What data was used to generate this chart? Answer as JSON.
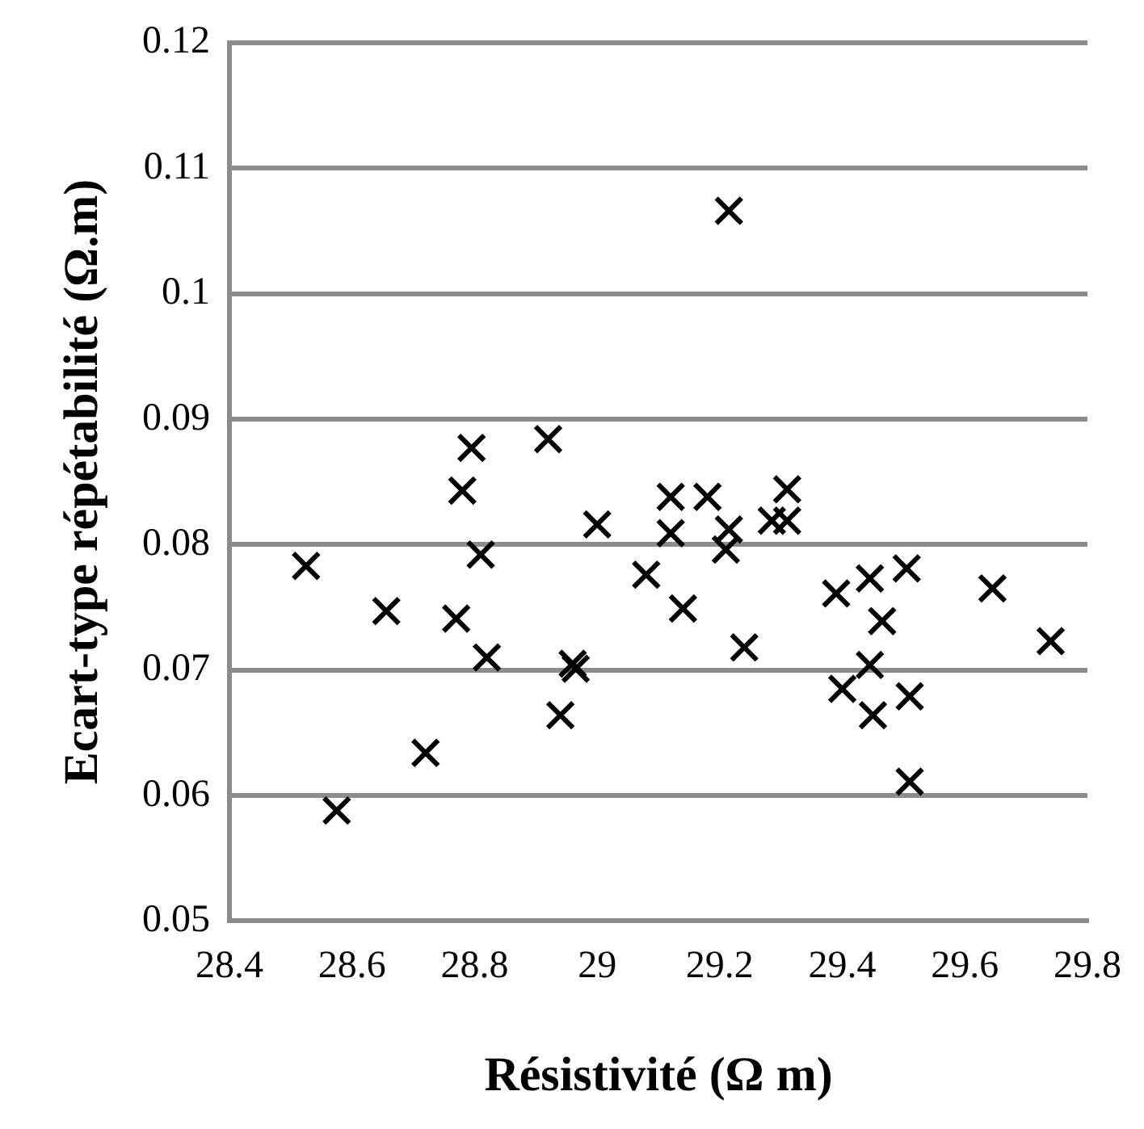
{
  "chart_data": {
    "type": "scatter",
    "xlabel": "Résistivité (Ω m)",
    "ylabel": "Ecart-type répétabilité (Ω.m)",
    "x": [
      28.525,
      28.575,
      28.656,
      28.72,
      28.795,
      28.78,
      28.81,
      28.77,
      28.82,
      28.92,
      29.0,
      28.94,
      28.96,
      28.965,
      29.08,
      29.12,
      29.12,
      29.14,
      29.215,
      29.18,
      29.21,
      29.215,
      29.24,
      29.285,
      29.31,
      29.31,
      29.39,
      29.445,
      29.505,
      29.465,
      29.645,
      29.74,
      29.445,
      29.4,
      29.45,
      29.51,
      29.51
    ],
    "values": [
      0.0783,
      0.0588,
      0.0747,
      0.0634,
      0.0877,
      0.0843,
      0.0792,
      0.0741,
      0.071,
      0.0884,
      0.0816,
      0.0664,
      0.0705,
      0.0701,
      0.0776,
      0.0838,
      0.0809,
      0.0749,
      0.1066,
      0.0838,
      0.0796,
      0.0812,
      0.0718,
      0.0819,
      0.0819,
      0.0844,
      0.0761,
      0.0773,
      0.0781,
      0.0739,
      0.0765,
      0.0723,
      0.0704,
      0.0685,
      0.0664,
      0.0679,
      0.0611
    ],
    "color": "#000000",
    "marker": "cross",
    "xlim": [
      28.4,
      29.8
    ],
    "xticks": [
      28.4,
      28.6,
      28.8,
      29,
      29.2,
      29.4,
      29.6,
      29.8
    ],
    "ylim": [
      0.05,
      0.12
    ],
    "yticks": [
      0.05,
      0.06,
      0.07,
      0.08,
      0.09,
      0.1,
      0.11,
      0.12
    ],
    "grid": "y",
    "legend": false
  }
}
